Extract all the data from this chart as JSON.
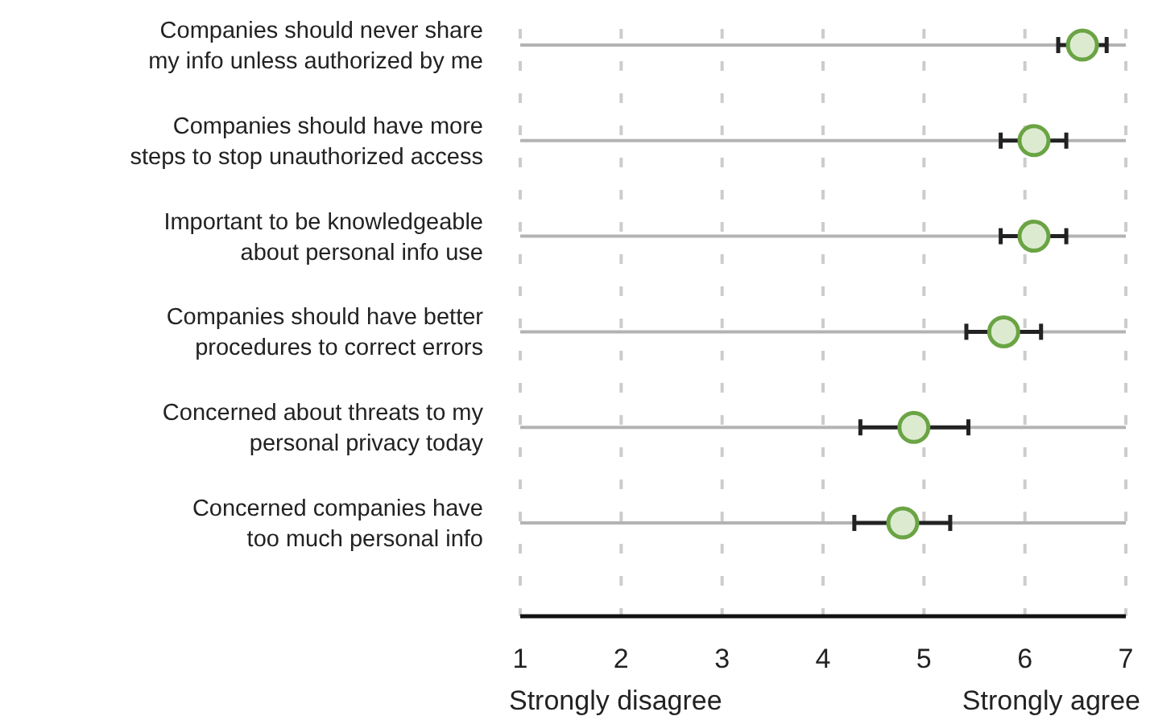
{
  "chart_data": {
    "type": "scatter",
    "orientation": "horizontal",
    "categories": [
      "Companies should never share\nmy info unless authorized by me",
      "Companies should have more\nsteps to stop unauthorized access",
      "Important to be knowledgeable\nabout personal info use",
      "Companies should have better\nprocedures to correct errors",
      "Concerned about threats to my\npersonal privacy today",
      "Concerned companies have\ntoo much personal info"
    ],
    "values": [
      6.57,
      6.09,
      6.09,
      5.79,
      4.9,
      4.79
    ],
    "errors": [
      [
        6.33,
        6.81
      ],
      [
        5.76,
        6.41
      ],
      [
        5.76,
        6.41
      ],
      [
        5.42,
        6.16
      ],
      [
        4.37,
        5.44
      ],
      [
        4.31,
        5.26
      ]
    ],
    "color": "#6aa444",
    "marker": "circle",
    "xlim": [
      1,
      7
    ],
    "xticks": [
      1,
      2,
      3,
      4,
      5,
      6,
      7
    ],
    "grid": true,
    "annotations": [
      "Strongly disagree",
      "Strongly agree"
    ]
  }
}
